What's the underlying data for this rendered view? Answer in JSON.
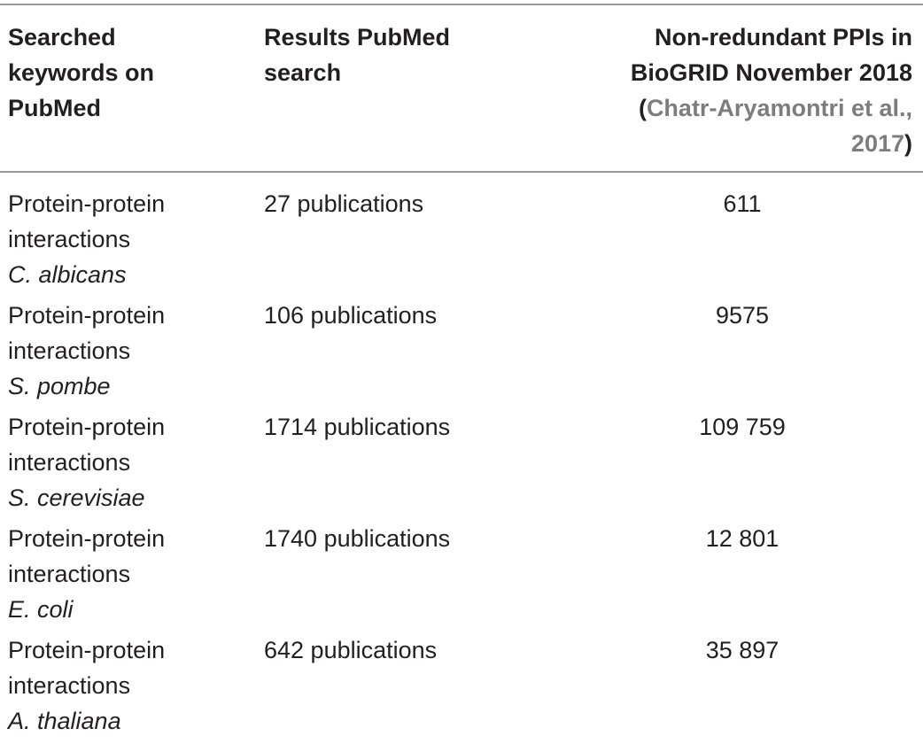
{
  "headers": {
    "col1": [
      "Searched",
      "keywords on",
      "PubMed"
    ],
    "col2": [
      "Results PubMed",
      "search"
    ],
    "col3_line1": "Non-redundant PPIs in",
    "col3_line2": "BioGRID November 2018",
    "col3_open": "(",
    "col3_cite1": "Chatr-Aryamontri et al.,",
    "col3_cite2": "2017",
    "col3_close": ")"
  },
  "rows": [
    {
      "line1": "Protein-protein",
      "line2": "interactions",
      "species": "C. albicans",
      "results": "27 publications",
      "ppis": "611"
    },
    {
      "line1": "Protein-protein",
      "line2": "interactions",
      "species": "S. pombe",
      "results": "106 publications",
      "ppis": "9575"
    },
    {
      "line1": "Protein-protein",
      "line2": "interactions",
      "species": "S. cerevisiae",
      "results": "1714 publications",
      "ppis": "109 759"
    },
    {
      "line1": "Protein-protein",
      "line2": "interactions",
      "species": "E. coli",
      "results": "1740 publications",
      "ppis": "12 801"
    },
    {
      "line1": "Protein-protein",
      "line2": "interactions",
      "species": "A. thaliana",
      "results": "642 publications",
      "ppis": "35 897"
    }
  ]
}
